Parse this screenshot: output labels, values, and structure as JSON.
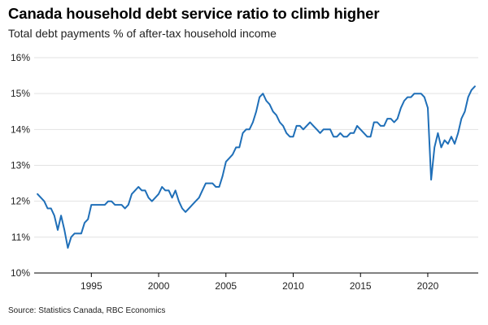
{
  "chart_data": {
    "type": "line",
    "title": "Canada household debt service ratio to climb higher",
    "subtitle": "Total debt payments % of after-tax household income",
    "source": "Source: Statistics Canada, RBC Economics",
    "ylim": [
      10,
      16
    ],
    "yticks": [
      10,
      11,
      12,
      13,
      14,
      15,
      16
    ],
    "ytick_labels": [
      "10%",
      "11%",
      "12%",
      "13%",
      "14%",
      "15%",
      "16%"
    ],
    "xlim": [
      1990.75,
      2023.75
    ],
    "xticks": [
      1995,
      2000,
      2005,
      2010,
      2015,
      2020
    ],
    "xtick_labels": [
      "1995",
      "2000",
      "2005",
      "2010",
      "2015",
      "2020"
    ],
    "grid": "horizontal",
    "color": "#1f6fb8",
    "series": [
      {
        "x": [
          1991.0,
          1991.25,
          1991.5,
          1991.75,
          1992.0,
          1992.25,
          1992.5,
          1992.75,
          1993.0,
          1993.25,
          1993.5,
          1993.75,
          1994.0,
          1994.25,
          1994.5,
          1994.75,
          1995.0,
          1995.25,
          1995.5,
          1995.75,
          1996.0,
          1996.25,
          1996.5,
          1996.75,
          1997.0,
          1997.25,
          1997.5,
          1997.75,
          1998.0,
          1998.25,
          1998.5,
          1998.75,
          1999.0,
          1999.25,
          1999.5,
          1999.75,
          2000.0,
          2000.25,
          2000.5,
          2000.75,
          2001.0,
          2001.25,
          2001.5,
          2001.75,
          2002.0,
          2002.25,
          2002.5,
          2002.75,
          2003.0,
          2003.25,
          2003.5,
          2003.75,
          2004.0,
          2004.25,
          2004.5,
          2004.75,
          2005.0,
          2005.25,
          2005.5,
          2005.75,
          2006.0,
          2006.25,
          2006.5,
          2006.75,
          2007.0,
          2007.25,
          2007.5,
          2007.75,
          2008.0,
          2008.25,
          2008.5,
          2008.75,
          2009.0,
          2009.25,
          2009.5,
          2009.75,
          2010.0,
          2010.25,
          2010.5,
          2010.75,
          2011.0,
          2011.25,
          2011.5,
          2011.75,
          2012.0,
          2012.25,
          2012.5,
          2012.75,
          2013.0,
          2013.25,
          2013.5,
          2013.75,
          2014.0,
          2014.25,
          2014.5,
          2014.75,
          2015.0,
          2015.25,
          2015.5,
          2015.75,
          2016.0,
          2016.25,
          2016.5,
          2016.75,
          2017.0,
          2017.25,
          2017.5,
          2017.75,
          2018.0,
          2018.25,
          2018.5,
          2018.75,
          2019.0,
          2019.25,
          2019.5,
          2019.75,
          2020.0,
          2020.25,
          2020.5,
          2020.75,
          2021.0,
          2021.25,
          2021.5,
          2021.75,
          2022.0,
          2022.25,
          2022.5,
          2022.75,
          2023.0,
          2023.25,
          2023.5
        ],
        "y": [
          12.2,
          12.1,
          12.0,
          11.8,
          11.8,
          11.6,
          11.2,
          11.6,
          11.2,
          10.7,
          11.0,
          11.1,
          11.1,
          11.1,
          11.4,
          11.5,
          11.9,
          11.9,
          11.9,
          11.9,
          11.9,
          12.0,
          12.0,
          11.9,
          11.9,
          11.9,
          11.8,
          11.9,
          12.2,
          12.3,
          12.4,
          12.3,
          12.3,
          12.1,
          12.0,
          12.1,
          12.2,
          12.4,
          12.3,
          12.3,
          12.1,
          12.3,
          12.0,
          11.8,
          11.7,
          11.8,
          11.9,
          12.0,
          12.1,
          12.3,
          12.5,
          12.5,
          12.5,
          12.4,
          12.4,
          12.7,
          13.1,
          13.2,
          13.3,
          13.5,
          13.5,
          13.9,
          14.0,
          14.0,
          14.2,
          14.5,
          14.9,
          15.0,
          14.8,
          14.7,
          14.5,
          14.4,
          14.2,
          14.1,
          13.9,
          13.8,
          13.8,
          14.1,
          14.1,
          14.0,
          14.1,
          14.2,
          14.1,
          14.0,
          13.9,
          14.0,
          14.0,
          14.0,
          13.8,
          13.8,
          13.9,
          13.8,
          13.8,
          13.9,
          13.9,
          14.1,
          14.0,
          13.9,
          13.8,
          13.8,
          14.2,
          14.2,
          14.1,
          14.1,
          14.3,
          14.3,
          14.2,
          14.3,
          14.6,
          14.8,
          14.9,
          14.9,
          15.0,
          15.0,
          15.0,
          14.9,
          14.6,
          12.6,
          13.5,
          13.9,
          13.5,
          13.7,
          13.6,
          13.8,
          13.6,
          13.9,
          14.3,
          14.5,
          14.9,
          15.1,
          15.2
        ]
      }
    ]
  }
}
